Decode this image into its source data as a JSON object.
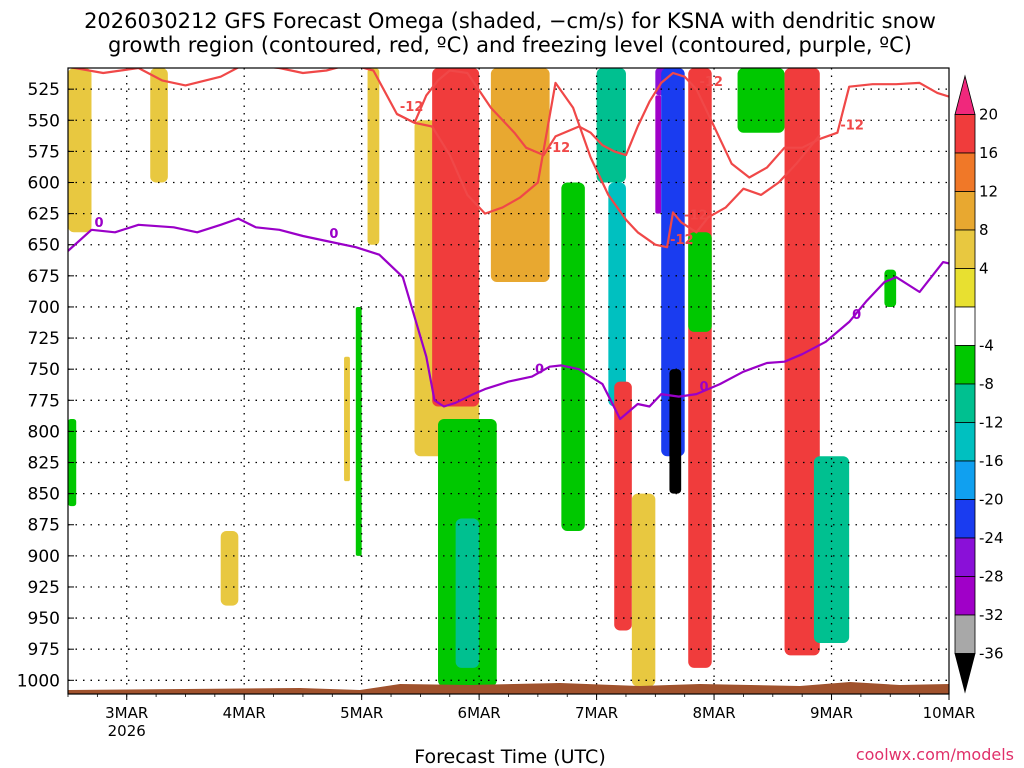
{
  "title": {
    "line1": "2026030212 GFS Forecast Omega (shaded, −cm/s) for KSNA with dendritic snow",
    "line2": "growth region (contoured, red, ºC) and freezing level (contoured, purple, ºC)"
  },
  "xlabel": "Forecast Time (UTC)",
  "credit": "coolwx.com/models",
  "colors": {
    "freezing_contour": "#9a00c8",
    "dgz_contour": "#f04848",
    "ground": "#a0522d",
    "grid": "#000000"
  },
  "chart_data": {
    "type": "heatmap",
    "title": "2026030212 GFS Forecast Omega (shaded, −cm/s) for KSNA with dendritic snow growth region (contoured, red, ºC) and freezing level (contoured, purple, ºC)",
    "xlabel": "Forecast Time (UTC)",
    "ylabel": "",
    "x_range_days": [
      2.5,
      10.0
    ],
    "y_range_hPa": [
      508,
      1011
    ],
    "y_axis": "pressure (hPa), inverted, top = 508",
    "x_ticks": [
      {
        "day": 3,
        "label": "3MAR",
        "sublabel": "2026"
      },
      {
        "day": 4,
        "label": "4MAR",
        "sublabel": ""
      },
      {
        "day": 5,
        "label": "5MAR",
        "sublabel": ""
      },
      {
        "day": 6,
        "label": "6MAR",
        "sublabel": ""
      },
      {
        "day": 7,
        "label": "7MAR",
        "sublabel": ""
      },
      {
        "day": 8,
        "label": "8MAR",
        "sublabel": ""
      },
      {
        "day": 9,
        "label": "9MAR",
        "sublabel": ""
      },
      {
        "day": 10,
        "label": "10MAR",
        "sublabel": ""
      }
    ],
    "y_ticks": [
      525,
      550,
      575,
      600,
      625,
      650,
      675,
      700,
      725,
      750,
      775,
      800,
      825,
      850,
      875,
      900,
      925,
      950,
      975,
      1000
    ],
    "colorbar": {
      "labels": [
        "20",
        "16",
        "12",
        "8",
        "4",
        "-4",
        "-8",
        "-12",
        "-16",
        "-20",
        "-24",
        "-28",
        "-32",
        "-36"
      ],
      "colors": [
        "#f0287c",
        "#f03c3c",
        "#f07828",
        "#e8a830",
        "#e8c840",
        "#e8e030",
        "#ffffff",
        "#00c800",
        "#00c090",
        "#00c0c0",
        "#10a0f0",
        "#1a3cf0",
        "#8a10d8",
        "#a000c8",
        "#a8a8a8",
        "#000000"
      ]
    },
    "freezing_level_0C": {
      "label": "0",
      "days": [
        2.5,
        2.7,
        2.9,
        3.1,
        3.4,
        3.6,
        3.8,
        3.95,
        4.1,
        4.3,
        4.5,
        4.7,
        4.95,
        5.15,
        5.35,
        5.55,
        5.62,
        5.7,
        5.8,
        5.95,
        6.05,
        6.25,
        6.45,
        6.6,
        6.7,
        6.85,
        7.05,
        7.2,
        7.35,
        7.45,
        7.55,
        7.7,
        7.85,
        8.05,
        8.25,
        8.45,
        8.6,
        8.75,
        8.95,
        9.15,
        9.3,
        9.45,
        9.55,
        9.75,
        9.95,
        10.0
      ],
      "hPa": [
        655,
        638,
        640,
        634,
        636,
        640,
        634,
        629,
        636,
        638,
        643,
        647,
        652,
        658,
        676,
        740,
        775,
        780,
        777,
        770,
        766,
        760,
        756,
        748,
        747,
        750,
        762,
        790,
        778,
        780,
        770,
        772,
        770,
        762,
        752,
        745,
        744,
        738,
        728,
        712,
        695,
        680,
        676,
        688,
        664,
        665
      ]
    },
    "dgz_minus12C_upper": {
      "label": "-12",
      "days": [
        2.5,
        2.8,
        3.1,
        3.3,
        3.5,
        3.8,
        4.0,
        4.3,
        4.5,
        4.7,
        4.9,
        5.1,
        5.3,
        5.45,
        5.55,
        5.65,
        5.75,
        5.9,
        6.1,
        6.3,
        6.4,
        6.55,
        6.65,
        6.85,
        6.95,
        7.05,
        7.15,
        7.25,
        7.35,
        7.45,
        7.55,
        7.65,
        7.75,
        7.85,
        7.95,
        8.15,
        8.3,
        8.45,
        8.6,
        8.75,
        8.9,
        9.05,
        9.15,
        9.35,
        9.55,
        9.75,
        9.9,
        10.0
      ],
      "hPa": [
        507,
        512,
        508,
        518,
        522,
        515,
        505,
        508,
        512,
        510,
        505,
        510,
        545,
        552,
        530,
        518,
        510,
        512,
        540,
        560,
        572,
        578,
        563,
        555,
        560,
        570,
        575,
        578,
        555,
        535,
        520,
        512,
        515,
        525,
        545,
        585,
        596,
        588,
        572,
        572,
        565,
        560,
        523,
        521,
        521,
        520,
        528,
        531
      ]
    },
    "dgz_minus12C_lower": {
      "label": "-12",
      "days": [
        5.3,
        5.45,
        5.6,
        5.75,
        5.9,
        6.05,
        6.2,
        6.35,
        6.5,
        6.65,
        6.8,
        6.95,
        7.1,
        7.25,
        7.35,
        7.5,
        7.6,
        7.65,
        7.72,
        7.85,
        7.95,
        8.1,
        8.25,
        8.4,
        8.55,
        8.7,
        8.9
      ],
      "hPa": [
        545,
        552,
        555,
        578,
        610,
        625,
        620,
        612,
        600,
        520,
        540,
        580,
        610,
        630,
        640,
        650,
        652,
        624,
        632,
        640,
        628,
        620,
        605,
        610,
        600,
        585,
        562
      ]
    },
    "omega_shading": [
      {
        "days": [
          2.5,
          2.7
        ],
        "hPa": [
          508,
          640
        ],
        "value": 6
      },
      {
        "days": [
          3.2,
          3.35
        ],
        "hPa": [
          508,
          600
        ],
        "value": 6
      },
      {
        "days": [
          2.5,
          2.57
        ],
        "hPa": [
          790,
          860
        ],
        "value": -10
      },
      {
        "days": [
          3.8,
          3.95
        ],
        "hPa": [
          880,
          940
        ],
        "value": 6
      },
      {
        "days": [
          4.85,
          4.9
        ],
        "hPa": [
          740,
          840
        ],
        "value": 5
      },
      {
        "days": [
          5.05,
          5.15
        ],
        "hPa": [
          508,
          650
        ],
        "value": 6
      },
      {
        "days": [
          4.95,
          5.0
        ],
        "hPa": [
          700,
          900
        ],
        "value": -8
      },
      {
        "days": [
          5.45,
          6.0
        ],
        "hPa": [
          550,
          820
        ],
        "value": 8
      },
      {
        "days": [
          5.6,
          6.0
        ],
        "hPa": [
          508,
          780
        ],
        "value": 20
      },
      {
        "days": [
          5.65,
          6.15
        ],
        "hPa": [
          790,
          1005
        ],
        "value": -10
      },
      {
        "days": [
          5.8,
          6.0
        ],
        "hPa": [
          870,
          990
        ],
        "value": -15
      },
      {
        "days": [
          6.1,
          6.6
        ],
        "hPa": [
          508,
          680
        ],
        "value": 10
      },
      {
        "days": [
          6.7,
          6.9
        ],
        "hPa": [
          600,
          880
        ],
        "value": -9
      },
      {
        "days": [
          7.0,
          7.25
        ],
        "hPa": [
          508,
          600
        ],
        "value": -13
      },
      {
        "days": [
          7.1,
          7.25
        ],
        "hPa": [
          600,
          780
        ],
        "value": -17
      },
      {
        "days": [
          7.15,
          7.3
        ],
        "hPa": [
          760,
          960
        ],
        "value": 18
      },
      {
        "days": [
          7.3,
          7.5
        ],
        "hPa": [
          850,
          1005
        ],
        "value": 8
      },
      {
        "days": [
          7.5,
          7.6
        ],
        "hPa": [
          508,
          530
        ],
        "value": -28
      },
      {
        "days": [
          7.5,
          7.55
        ],
        "hPa": [
          530,
          625
        ],
        "value": -34
      },
      {
        "days": [
          7.55,
          7.75
        ],
        "hPa": [
          508,
          820
        ],
        "value": -26
      },
      {
        "days": [
          7.62,
          7.72
        ],
        "hPa": [
          750,
          850
        ],
        "value": -40
      },
      {
        "days": [
          7.78,
          7.98
        ],
        "hPa": [
          508,
          990
        ],
        "value": 20
      },
      {
        "days": [
          7.78,
          7.98
        ],
        "hPa": [
          640,
          720
        ],
        "value": -8
      },
      {
        "days": [
          8.2,
          8.6
        ],
        "hPa": [
          508,
          560
        ],
        "value": -10
      },
      {
        "days": [
          8.6,
          8.9
        ],
        "hPa": [
          508,
          980
        ],
        "value": 18
      },
      {
        "days": [
          8.85,
          9.15
        ],
        "hPa": [
          820,
          970
        ],
        "value": -14
      },
      {
        "days": [
          9.45,
          9.55
        ],
        "hPa": [
          670,
          700
        ],
        "value": -8
      }
    ]
  }
}
